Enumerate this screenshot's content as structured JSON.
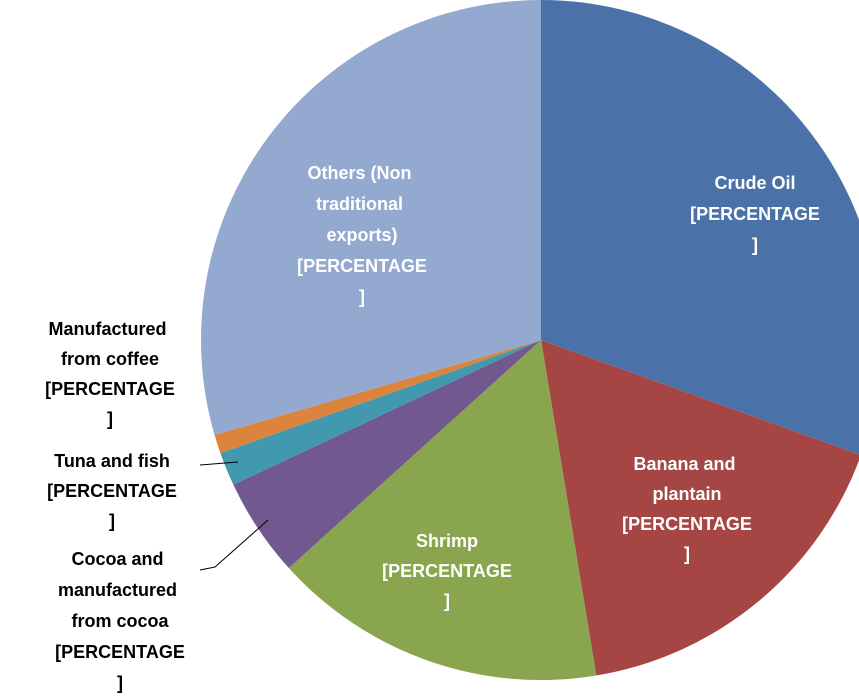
{
  "chart_data": {
    "type": "pie",
    "categories": [
      "Crude Oil",
      "Banana and plantain",
      "Shrimp",
      "Cocoa and manufactured from cocoa",
      "Tuna and fish",
      "Manufactured from coffee",
      "Others (Non traditional exports)"
    ],
    "values": [
      30.5,
      16.9,
      15.9,
      4.7,
      1.6,
      0.9,
      29.5
    ],
    "value_labels": [
      "[PERCENTAGE]",
      "[PERCENTAGE]",
      "[PERCENTAGE]",
      "[PERCENTAGE]",
      "[PERCENTAGE]",
      "[PERCENTAGE]",
      "[PERCENTAGE]"
    ],
    "colors": [
      "#4a72a8",
      "#a64644",
      "#89a54e",
      "#71588f",
      "#4198af",
      "#db843d",
      "#93a9cf"
    ]
  }
}
